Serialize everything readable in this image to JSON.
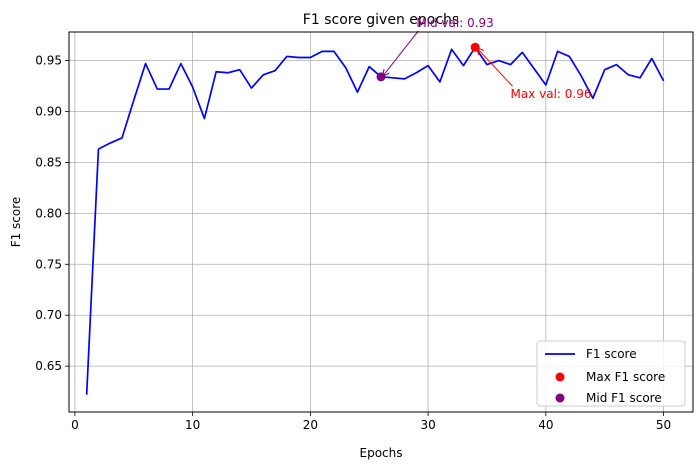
{
  "chart_data": {
    "type": "line",
    "title": "F1 score given epochs",
    "xlabel": "Epochs",
    "ylabel": "F1 score",
    "xlim": [
      -0.5,
      52.5
    ],
    "ylim": [
      0.605,
      0.978
    ],
    "xticks": [
      0,
      10,
      20,
      30,
      40,
      50
    ],
    "yticks": [
      0.65,
      0.7,
      0.75,
      0.8,
      0.85,
      0.9,
      0.95
    ],
    "grid": true,
    "legend_position": "lower-right",
    "series": [
      {
        "name": "F1 score",
        "color": "#0000ff",
        "x": [
          1,
          2,
          3,
          4,
          5,
          6,
          7,
          8,
          9,
          10,
          11,
          12,
          13,
          14,
          15,
          16,
          17,
          18,
          19,
          20,
          21,
          22,
          23,
          24,
          25,
          26,
          27,
          28,
          29,
          30,
          31,
          32,
          33,
          34,
          35,
          36,
          37,
          38,
          39,
          40,
          41,
          42,
          43,
          44,
          45,
          46,
          47,
          48,
          49,
          50
        ],
        "y": [
          0.622,
          0.863,
          0.869,
          0.874,
          0.911,
          0.947,
          0.922,
          0.922,
          0.947,
          0.924,
          0.893,
          0.939,
          0.938,
          0.941,
          0.923,
          0.936,
          0.94,
          0.954,
          0.953,
          0.953,
          0.959,
          0.959,
          0.943,
          0.919,
          0.944,
          0.934,
          0.933,
          0.932,
          0.938,
          0.945,
          0.929,
          0.961,
          0.945,
          0.963,
          0.946,
          0.95,
          0.946,
          0.958,
          0.942,
          0.926,
          0.959,
          0.954,
          0.935,
          0.913,
          0.941,
          0.946,
          0.936,
          0.933,
          0.952,
          0.93
        ]
      }
    ],
    "points": [
      {
        "name": "Max F1 score",
        "color": "#ff0000",
        "x": 34,
        "y": 0.963
      },
      {
        "name": "Mid F1 score",
        "color": "#800080",
        "x": 26,
        "y": 0.934
      }
    ],
    "annotations": [
      {
        "text": "Max val: 0.96",
        "color": "#ff0000",
        "target_x": 34,
        "target_y": 0.963,
        "text_x": 37,
        "text_y": 0.913
      },
      {
        "text": "Mid val: 0.93",
        "color": "#800080",
        "target_x": 26,
        "target_y": 0.934,
        "text_x": 29,
        "text_y": 0.983
      }
    ],
    "legend": [
      "F1 score",
      "Max F1 score",
      "Mid F1 score"
    ]
  }
}
